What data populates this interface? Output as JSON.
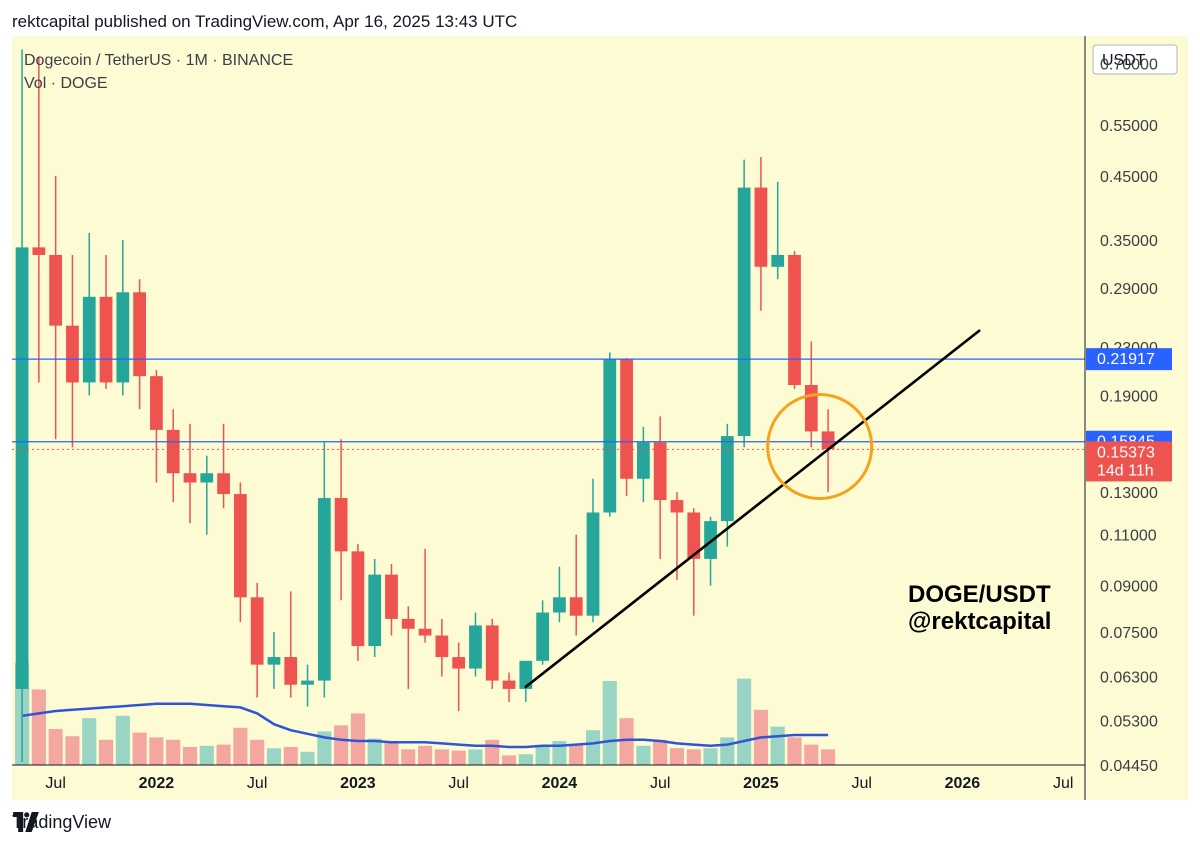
{
  "header": {
    "publisher_line": "rektcapital published on TradingView.com, Apr 16, 2025 13:43 UTC"
  },
  "footer": {
    "brand": "TradingView"
  },
  "colors": {
    "background": "#fdfbd4",
    "bull": "#26a69a",
    "bear": "#ef5350",
    "bull_vol": "#9ad4c4",
    "bear_vol": "#f4a6a0",
    "level_line": "#2962ff",
    "trendline": "#000000",
    "circle": "#f7a21b",
    "vol_ma": "#2f55d4"
  },
  "chart_data": {
    "type": "candlestick",
    "title": "Dogecoin / TetherUS · 1M · BINANCE",
    "volume_label": "Vol · DOGE",
    "currency": "USDT",
    "y_scale": "log",
    "ylim": [
      0.0445,
      0.78
    ],
    "y_ticks": [
      0.7,
      0.55,
      0.45,
      0.35,
      0.29,
      0.23,
      0.19,
      0.13,
      0.11,
      0.09,
      0.075,
      0.063,
      0.053,
      0.0445
    ],
    "x_ticks": [
      {
        "label": "Jul",
        "i": 2,
        "bold": false
      },
      {
        "label": "2022",
        "i": 8,
        "bold": true
      },
      {
        "label": "Jul",
        "i": 14,
        "bold": false
      },
      {
        "label": "2023",
        "i": 20,
        "bold": true
      },
      {
        "label": "Jul",
        "i": 26,
        "bold": false
      },
      {
        "label": "2024",
        "i": 32,
        "bold": true
      },
      {
        "label": "Jul",
        "i": 38,
        "bold": false
      },
      {
        "label": "2025",
        "i": 44,
        "bold": true
      },
      {
        "label": "Jul",
        "i": 50,
        "bold": false
      },
      {
        "label": "2026",
        "i": 56,
        "bold": true
      },
      {
        "label": "Jul",
        "i": 62,
        "bold": false
      }
    ],
    "x_index_range": [
      -0.6,
      63.3
    ],
    "candles": [
      {
        "o": 0.06,
        "h": 0.74,
        "l": 0.045,
        "c": 0.34
      },
      {
        "o": 0.34,
        "h": 0.72,
        "l": 0.2,
        "c": 0.33
      },
      {
        "o": 0.33,
        "h": 0.45,
        "l": 0.16,
        "c": 0.25
      },
      {
        "o": 0.25,
        "h": 0.33,
        "l": 0.155,
        "c": 0.2
      },
      {
        "o": 0.2,
        "h": 0.36,
        "l": 0.19,
        "c": 0.28
      },
      {
        "o": 0.28,
        "h": 0.33,
        "l": 0.195,
        "c": 0.2
      },
      {
        "o": 0.2,
        "h": 0.35,
        "l": 0.19,
        "c": 0.285
      },
      {
        "o": 0.285,
        "h": 0.3,
        "l": 0.18,
        "c": 0.205
      },
      {
        "o": 0.205,
        "h": 0.21,
        "l": 0.135,
        "c": 0.166
      },
      {
        "o": 0.166,
        "h": 0.18,
        "l": 0.125,
        "c": 0.14
      },
      {
        "o": 0.14,
        "h": 0.17,
        "l": 0.115,
        "c": 0.135
      },
      {
        "o": 0.135,
        "h": 0.15,
        "l": 0.11,
        "c": 0.14
      },
      {
        "o": 0.14,
        "h": 0.17,
        "l": 0.122,
        "c": 0.129
      },
      {
        "o": 0.129,
        "h": 0.135,
        "l": 0.078,
        "c": 0.086
      },
      {
        "o": 0.086,
        "h": 0.091,
        "l": 0.058,
        "c": 0.066
      },
      {
        "o": 0.066,
        "h": 0.075,
        "l": 0.06,
        "c": 0.068
      },
      {
        "o": 0.068,
        "h": 0.088,
        "l": 0.058,
        "c": 0.061
      },
      {
        "o": 0.061,
        "h": 0.066,
        "l": 0.056,
        "c": 0.062
      },
      {
        "o": 0.062,
        "h": 0.158,
        "l": 0.058,
        "c": 0.127
      },
      {
        "o": 0.127,
        "h": 0.16,
        "l": 0.085,
        "c": 0.103
      },
      {
        "o": 0.103,
        "h": 0.106,
        "l": 0.067,
        "c": 0.071
      },
      {
        "o": 0.071,
        "h": 0.1,
        "l": 0.068,
        "c": 0.094
      },
      {
        "o": 0.094,
        "h": 0.098,
        "l": 0.074,
        "c": 0.079
      },
      {
        "o": 0.079,
        "h": 0.083,
        "l": 0.06,
        "c": 0.076
      },
      {
        "o": 0.076,
        "h": 0.104,
        "l": 0.072,
        "c": 0.074
      },
      {
        "o": 0.074,
        "h": 0.079,
        "l": 0.063,
        "c": 0.068
      },
      {
        "o": 0.068,
        "h": 0.072,
        "l": 0.055,
        "c": 0.065
      },
      {
        "o": 0.065,
        "h": 0.081,
        "l": 0.063,
        "c": 0.077
      },
      {
        "o": 0.077,
        "h": 0.079,
        "l": 0.06,
        "c": 0.062
      },
      {
        "o": 0.062,
        "h": 0.064,
        "l": 0.057,
        "c": 0.06
      },
      {
        "o": 0.06,
        "h": 0.067,
        "l": 0.057,
        "c": 0.067
      },
      {
        "o": 0.067,
        "h": 0.085,
        "l": 0.066,
        "c": 0.081
      },
      {
        "o": 0.081,
        "h": 0.097,
        "l": 0.078,
        "c": 0.086
      },
      {
        "o": 0.086,
        "h": 0.11,
        "l": 0.074,
        "c": 0.08
      },
      {
        "o": 0.08,
        "h": 0.137,
        "l": 0.078,
        "c": 0.12
      },
      {
        "o": 0.12,
        "h": 0.225,
        "l": 0.118,
        "c": 0.219
      },
      {
        "o": 0.219,
        "h": 0.22,
        "l": 0.128,
        "c": 0.137
      },
      {
        "o": 0.137,
        "h": 0.168,
        "l": 0.125,
        "c": 0.158
      },
      {
        "o": 0.158,
        "h": 0.175,
        "l": 0.1,
        "c": 0.126
      },
      {
        "o": 0.126,
        "h": 0.13,
        "l": 0.092,
        "c": 0.12
      },
      {
        "o": 0.12,
        "h": 0.122,
        "l": 0.08,
        "c": 0.1
      },
      {
        "o": 0.1,
        "h": 0.118,
        "l": 0.09,
        "c": 0.116
      },
      {
        "o": 0.116,
        "h": 0.17,
        "l": 0.105,
        "c": 0.162
      },
      {
        "o": 0.162,
        "h": 0.48,
        "l": 0.155,
        "c": 0.43
      },
      {
        "o": 0.43,
        "h": 0.485,
        "l": 0.265,
        "c": 0.315
      },
      {
        "o": 0.315,
        "h": 0.44,
        "l": 0.3,
        "c": 0.33
      },
      {
        "o": 0.33,
        "h": 0.335,
        "l": 0.195,
        "c": 0.198
      },
      {
        "o": 0.198,
        "h": 0.235,
        "l": 0.155,
        "c": 0.165
      },
      {
        "o": 0.165,
        "h": 0.18,
        "l": 0.13,
        "c": 0.154
      }
    ],
    "volume": {
      "max": 100,
      "values": [
        85,
        63,
        30,
        24,
        39,
        21,
        41,
        27,
        23,
        21,
        15,
        16,
        17,
        31,
        21,
        14,
        15,
        11,
        28,
        33,
        43,
        22,
        19,
        13,
        16,
        13,
        12,
        13,
        21,
        8,
        9,
        15,
        20,
        17,
        29,
        70,
        39,
        16,
        21,
        14,
        13,
        14,
        23,
        72,
        46,
        32,
        23,
        17,
        13
      ],
      "ma": [
        41,
        43,
        45,
        46,
        47,
        48,
        49,
        50,
        51,
        51,
        51,
        50,
        49,
        48,
        43,
        34,
        29,
        26,
        23,
        21,
        20,
        20,
        19,
        19,
        19,
        18,
        17,
        16,
        16,
        15,
        15,
        16,
        16,
        17,
        18,
        20,
        21,
        21,
        20,
        18,
        17,
        16,
        17,
        20,
        23,
        24,
        25,
        25,
        25
      ]
    },
    "levels": [
      {
        "label": "0.21917",
        "value": 0.21917,
        "style": "solid"
      },
      {
        "label": "0.15845",
        "value": 0.15845,
        "style": "solid"
      },
      {
        "label": "0.15373",
        "value": 0.15373,
        "style": "dotted",
        "sub_label": "14d 11h"
      }
    ],
    "trendline": {
      "i1": 30,
      "v1": 0.0605,
      "i2": 57,
      "v2": 0.245
    },
    "highlight_circle": {
      "i": 47.5,
      "value": 0.1555
    },
    "annotation": {
      "line1": "DOGE/USDT",
      "line2": "@rektcapital"
    }
  }
}
